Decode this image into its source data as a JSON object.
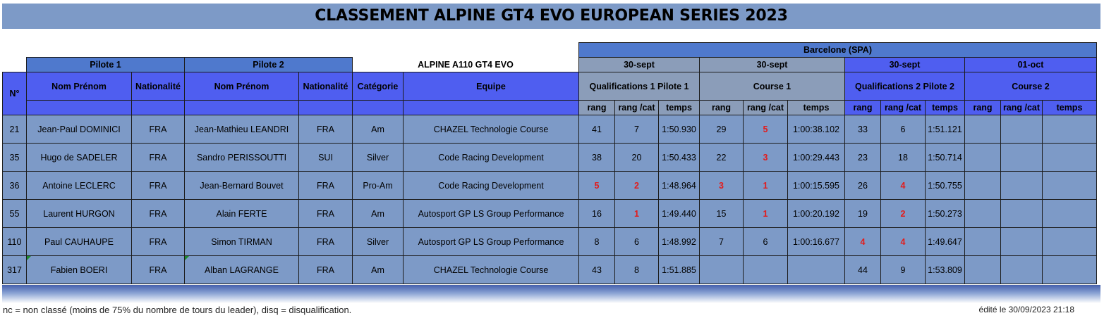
{
  "title": "CLASSEMENT ALPINE GT4 EVO EUROPEAN SERIES 2023",
  "event": "Barcelone (SPA)",
  "groups": {
    "pilote1": "Pilote 1",
    "pilote2": "Pilote 2",
    "car": "ALPINE A110 GT4 EVO"
  },
  "dates": [
    "30-sept",
    "30-sept",
    "30-sept",
    "01-oct"
  ],
  "sessions": [
    "Qualifications 1 Pilote 1",
    "Course 1",
    "Qualifications 2 Pilote 2",
    "Course 2"
  ],
  "columns": {
    "no": "N°",
    "name1": "Nom Prénom",
    "nat1": "Nationalité",
    "name2": "Nom Prénom",
    "nat2": "Nationalité",
    "cat": "Catégorie",
    "team": "Equipe"
  },
  "sub_columns": [
    "rang",
    "rang /cat",
    "temps"
  ],
  "rows": [
    {
      "no": "21",
      "p1": "Jean-Paul DOMINICI",
      "n1": "FRA",
      "p2": "Jean-Mathieu LEANDRI",
      "n2": "FRA",
      "cat": "Am",
      "team": "CHAZEL Technologie Course",
      "q1": [
        "41",
        "7",
        "1:50.930"
      ],
      "c1": [
        "29",
        "5",
        "1:00:38.102"
      ],
      "q2": [
        "33",
        "6",
        "1:51.121"
      ],
      "c2": [
        "",
        "",
        ""
      ]
    },
    {
      "no": "35",
      "p1": "Hugo de SADELER",
      "n1": "FRA",
      "p2": "Sandro PERISSOUTTI",
      "n2": "SUI",
      "cat": "Silver",
      "team": "Code Racing Development",
      "q1": [
        "38",
        "20",
        "1:50.433"
      ],
      "c1": [
        "22",
        "3",
        "1:00:29.443"
      ],
      "q2": [
        "23",
        "18",
        "1:50.714"
      ],
      "c2": [
        "",
        "",
        ""
      ]
    },
    {
      "no": "36",
      "p1": "Antoine LECLERC",
      "n1": "FRA",
      "p2": "Jean-Bernard Bouvet",
      "n2": "FRA",
      "cat": "Pro-Am",
      "team": "Code Racing Development",
      "q1": [
        "5",
        "2",
        "1:48.964"
      ],
      "c1": [
        "3",
        "1",
        "1:00:15.595"
      ],
      "q2": [
        "26",
        "4",
        "1:50.755"
      ],
      "c2": [
        "",
        "",
        ""
      ]
    },
    {
      "no": "55",
      "p1": "Laurent HURGON",
      "n1": "FRA",
      "p2": "Alain FERTE",
      "n2": "FRA",
      "cat": "Am",
      "team": "Autosport GP LS Group Performance",
      "q1": [
        "16",
        "1",
        "1:49.440"
      ],
      "c1": [
        "15",
        "1",
        "1:00:20.192"
      ],
      "q2": [
        "19",
        "2",
        "1:50.273"
      ],
      "c2": [
        "",
        "",
        ""
      ]
    },
    {
      "no": "110",
      "p1": "Paul CAUHAUPE",
      "n1": "FRA",
      "p2": "Simon TIRMAN",
      "n2": "FRA",
      "cat": "Silver",
      "team": "Autosport GP LS Group Performance",
      "q1": [
        "8",
        "6",
        "1:48.992"
      ],
      "c1": [
        "7",
        "6",
        "1:00:16.677"
      ],
      "q2": [
        "4",
        "4",
        "1:49.647"
      ],
      "c2": [
        "",
        "",
        ""
      ]
    },
    {
      "no": "317",
      "p1": "Fabien BOERI",
      "n1": "FRA",
      "p2": "Alban LAGRANGE",
      "n2": "FRA",
      "cat": "Am",
      "team": "CHAZEL Technologie Course",
      "q1": [
        "43",
        "8",
        "1:51.885"
      ],
      "c1": [
        "",
        "",
        ""
      ],
      "q2": [
        "44",
        "9",
        "1:53.809"
      ],
      "c2": [
        "",
        "",
        ""
      ]
    }
  ],
  "footnote": "nc = non classé (moins de 75% du nombre de tours du leader), disq = disqualification.",
  "edited": "édité le  30/09/2023 21:18",
  "colors": {
    "title_bg": "#7d9ac7",
    "header_blue": "#4f5ef0",
    "header_steel": "#4f79cd",
    "header_grey": "#8b9db9",
    "cell_bg": "#7d9ac7",
    "podium_red": "#e31b1b"
  }
}
